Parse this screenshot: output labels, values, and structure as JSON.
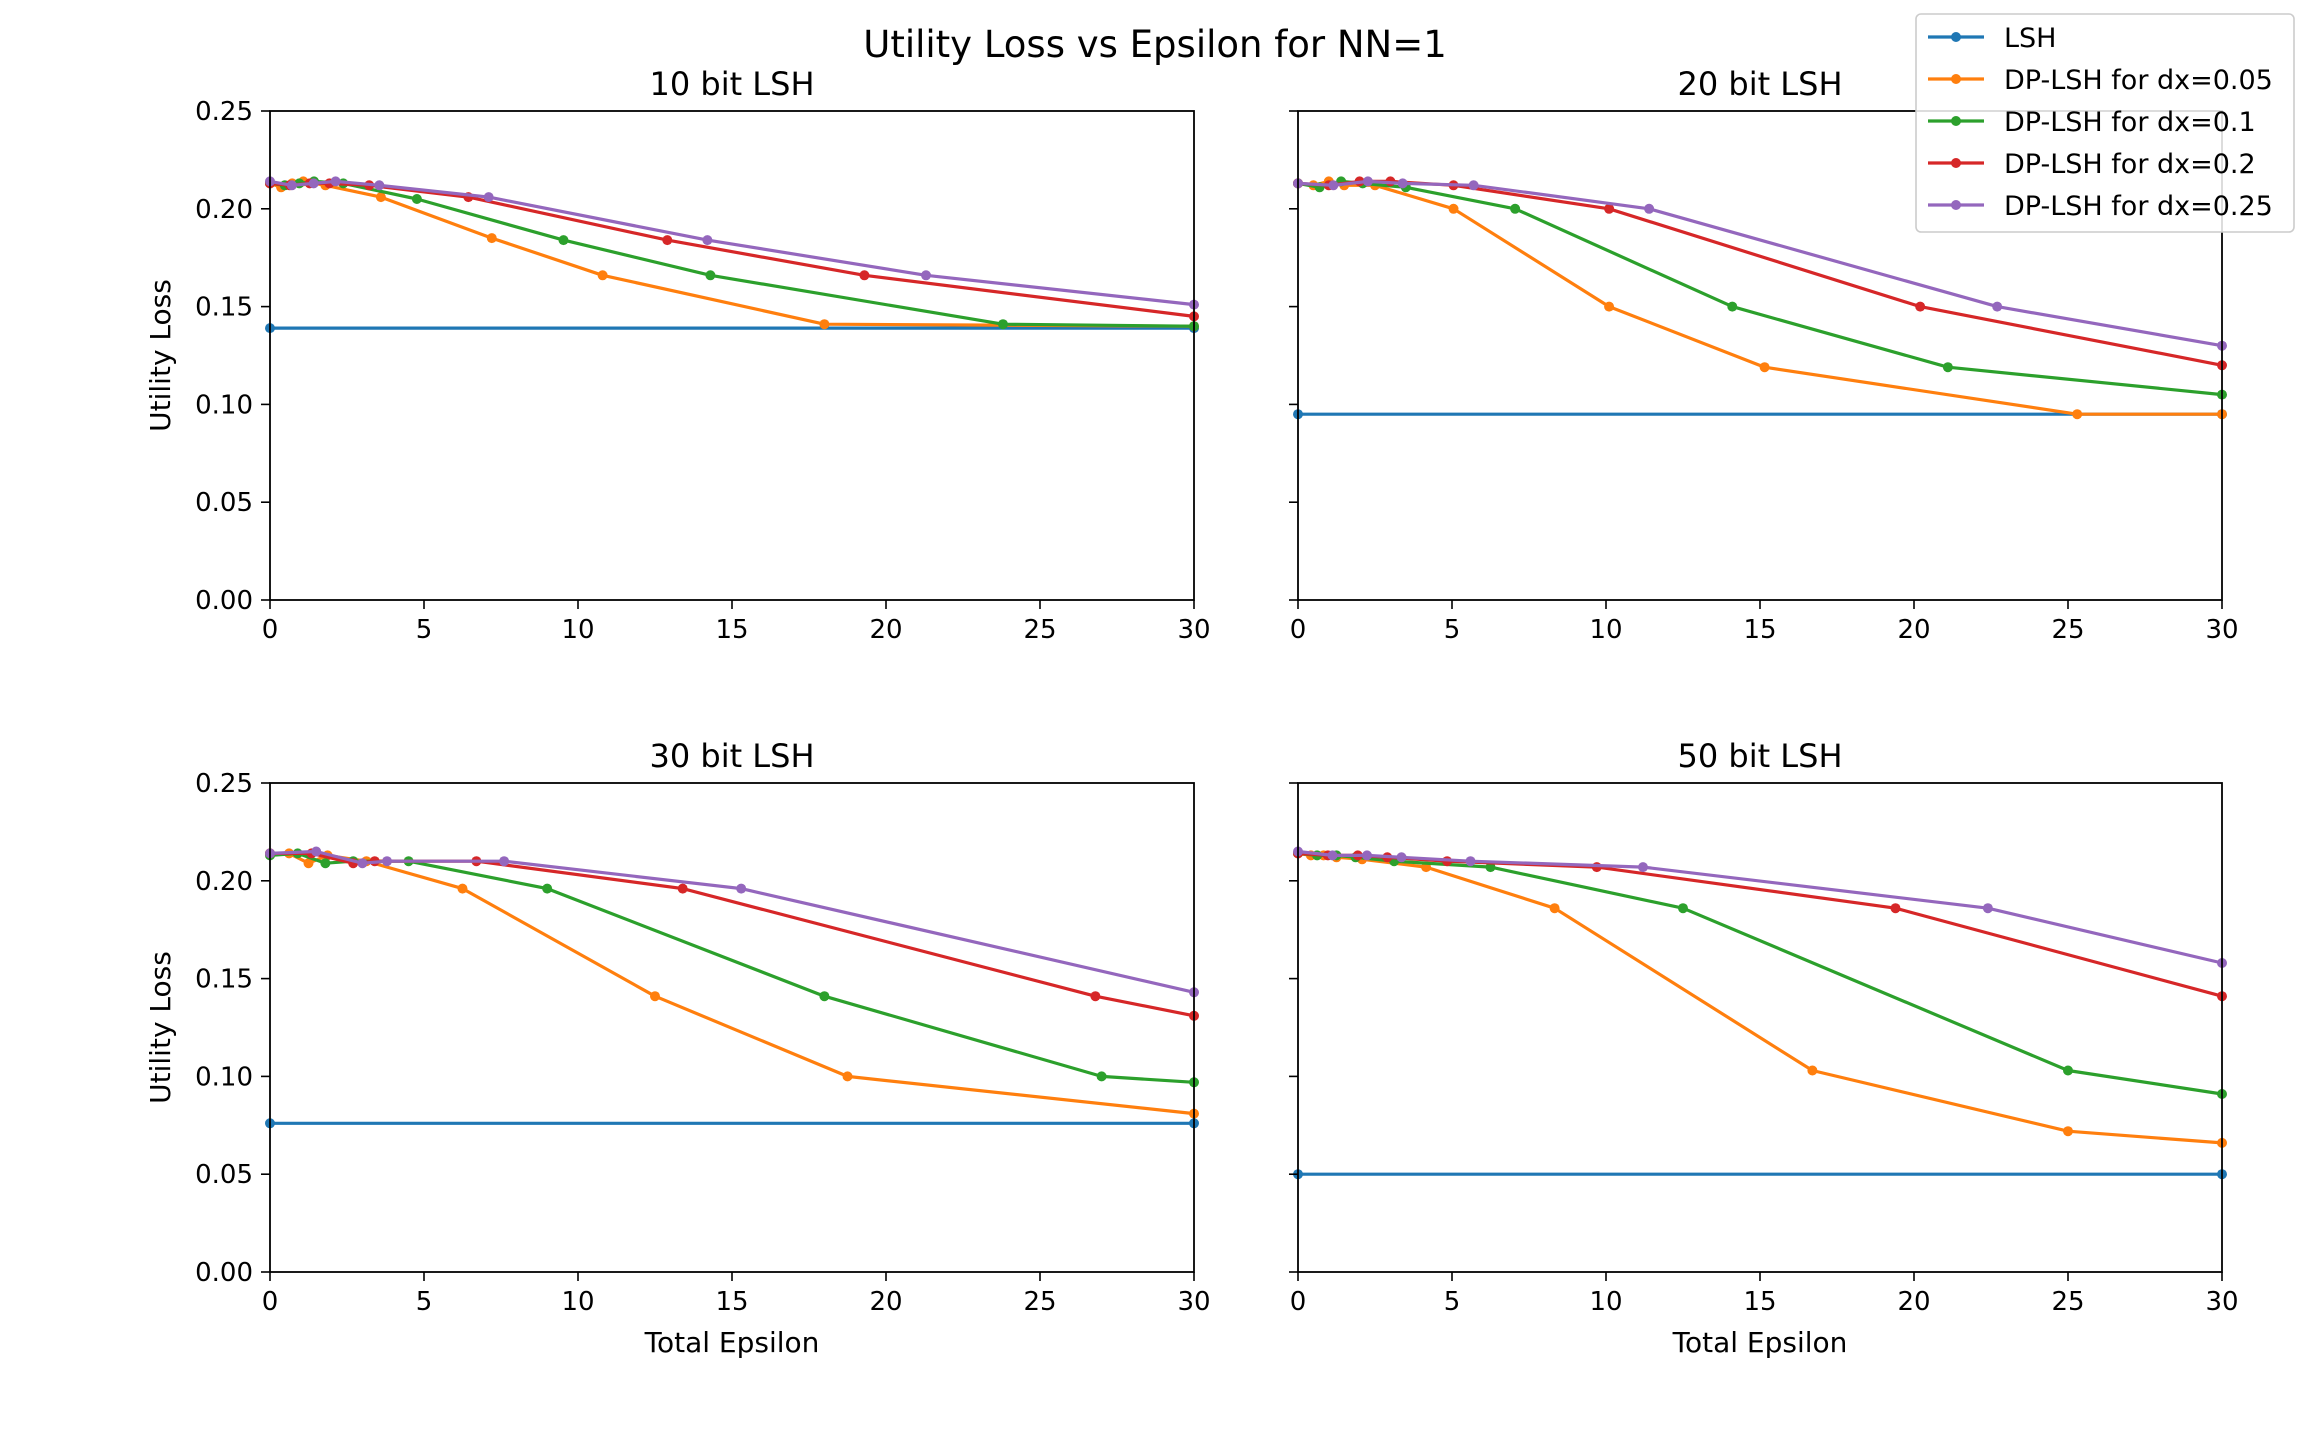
{
  "title": "Utility Loss vs Epsilon for NN=1",
  "legend": [
    {
      "label": "LSH",
      "color": "#1f77b4"
    },
    {
      "label": "DP-LSH for dx=0.05",
      "color": "#ff7f0e"
    },
    {
      "label": "DP-LSH for dx=0.1",
      "color": "#2ca02c"
    },
    {
      "label": "DP-LSH for dx=0.2",
      "color": "#d62728"
    },
    {
      "label": "DP-LSH for dx=0.25",
      "color": "#9467bd"
    }
  ],
  "chart_data": [
    {
      "type": "line",
      "title": "10 bit LSH",
      "xlabel": "",
      "ylabel": "Utility Loss",
      "xlim": [
        0,
        30
      ],
      "ylim": [
        0,
        0.25
      ],
      "xticks": [
        "0",
        "5",
        "10",
        "15",
        "20",
        "25",
        "30"
      ],
      "yticks": [
        "0.00",
        "0.05",
        "0.10",
        "0.15",
        "0.20",
        "0.25"
      ],
      "series": [
        {
          "name": "LSH",
          "color": "#1f77b4",
          "x": [
            0,
            30
          ],
          "y": [
            0.139,
            0.139
          ]
        },
        {
          "name": "DP-LSH for dx=0.05",
          "color": "#ff7f0e",
          "x": [
            0,
            0.36,
            0.72,
            1.08,
            1.8,
            3.6,
            7.2,
            10.8,
            18,
            30
          ],
          "y": [
            0.213,
            0.211,
            0.213,
            0.214,
            0.212,
            0.206,
            0.185,
            0.166,
            0.141,
            0.14
          ]
        },
        {
          "name": "DP-LSH for dx=0.1",
          "color": "#2ca02c",
          "x": [
            0,
            0.48,
            0.95,
            1.43,
            2.38,
            4.77,
            9.53,
            14.3,
            23.8,
            30
          ],
          "y": [
            0.213,
            0.212,
            0.213,
            0.214,
            0.213,
            0.205,
            0.184,
            0.166,
            0.141,
            0.14
          ]
        },
        {
          "name": "DP-LSH for dx=0.2",
          "color": "#d62728",
          "x": [
            0,
            0.64,
            1.29,
            1.93,
            3.22,
            6.44,
            12.9,
            19.3,
            30
          ],
          "y": [
            0.213,
            0.212,
            0.213,
            0.213,
            0.212,
            0.206,
            0.184,
            0.166,
            0.145
          ]
        },
        {
          "name": "DP-LSH for dx=0.25",
          "color": "#9467bd",
          "x": [
            0,
            0.71,
            1.42,
            2.13,
            3.55,
            7.1,
            14.2,
            21.3,
            30
          ],
          "y": [
            0.214,
            0.212,
            0.213,
            0.214,
            0.212,
            0.206,
            0.184,
            0.166,
            0.151
          ]
        }
      ]
    },
    {
      "type": "line",
      "title": "20 bit LSH",
      "xlabel": "",
      "ylabel": "",
      "xlim": [
        0,
        30
      ],
      "ylim": [
        0,
        0.25
      ],
      "xticks": [
        "0",
        "5",
        "10",
        "15",
        "20",
        "25",
        "30"
      ],
      "yticks": [],
      "series": [
        {
          "name": "LSH",
          "color": "#1f77b4",
          "x": [
            0,
            30
          ],
          "y": [
            0.095,
            0.095
          ]
        },
        {
          "name": "DP-LSH for dx=0.05",
          "color": "#ff7f0e",
          "x": [
            0,
            0.5,
            1.0,
            1.5,
            2.5,
            5.05,
            10.1,
            15.15,
            25.3,
            30
          ],
          "y": [
            0.213,
            0.212,
            0.214,
            0.212,
            0.212,
            0.2,
            0.15,
            0.119,
            0.095,
            0.095
          ]
        },
        {
          "name": "DP-LSH for dx=0.1",
          "color": "#2ca02c",
          "x": [
            0,
            0.7,
            1.4,
            2.1,
            3.5,
            7.05,
            14.1,
            21.1,
            30
          ],
          "y": [
            0.213,
            0.211,
            0.214,
            0.213,
            0.211,
            0.2,
            0.15,
            0.119,
            0.105
          ]
        },
        {
          "name": "DP-LSH for dx=0.2",
          "color": "#d62728",
          "x": [
            0,
            1.0,
            2.0,
            3.0,
            5.05,
            10.1,
            20.2,
            30
          ],
          "y": [
            0.213,
            0.212,
            0.214,
            0.214,
            0.212,
            0.2,
            0.15,
            0.12
          ]
        },
        {
          "name": "DP-LSH for dx=0.25",
          "color": "#9467bd",
          "x": [
            0,
            1.15,
            2.27,
            3.4,
            5.7,
            11.4,
            22.7,
            30
          ],
          "y": [
            0.213,
            0.212,
            0.214,
            0.213,
            0.212,
            0.2,
            0.15,
            0.13
          ]
        }
      ]
    },
    {
      "type": "line",
      "title": "30 bit LSH",
      "xlabel": "Total Epsilon",
      "ylabel": "Utility Loss",
      "xlim": [
        0,
        30
      ],
      "ylim": [
        0,
        0.25
      ],
      "xticks": [
        "0",
        "5",
        "10",
        "15",
        "20",
        "25",
        "30"
      ],
      "yticks": [
        "0.00",
        "0.05",
        "0.10",
        "0.15",
        "0.20",
        "0.25"
      ],
      "series": [
        {
          "name": "LSH",
          "color": "#1f77b4",
          "x": [
            0,
            30
          ],
          "y": [
            0.076,
            0.076
          ]
        },
        {
          "name": "DP-LSH for dx=0.05",
          "color": "#ff7f0e",
          "x": [
            0,
            0.62,
            1.25,
            1.87,
            3.13,
            6.25,
            12.5,
            18.75,
            30
          ],
          "y": [
            0.214,
            0.214,
            0.209,
            0.213,
            0.21,
            0.196,
            0.141,
            0.1,
            0.081
          ]
        },
        {
          "name": "DP-LSH for dx=0.1",
          "color": "#2ca02c",
          "x": [
            0,
            0.9,
            1.8,
            2.7,
            4.5,
            9.0,
            18.0,
            27.0,
            30
          ],
          "y": [
            0.213,
            0.214,
            0.209,
            0.21,
            0.21,
            0.196,
            0.141,
            0.1,
            0.097
          ]
        },
        {
          "name": "DP-LSH for dx=0.2",
          "color": "#d62728",
          "x": [
            0,
            1.35,
            2.7,
            3.4,
            6.7,
            13.4,
            26.8,
            30
          ],
          "y": [
            0.214,
            0.214,
            0.209,
            0.21,
            0.21,
            0.196,
            0.141,
            0.131
          ]
        },
        {
          "name": "DP-LSH for dx=0.25",
          "color": "#9467bd",
          "x": [
            0,
            1.5,
            3.0,
            3.8,
            7.6,
            15.3,
            30
          ],
          "y": [
            0.214,
            0.215,
            0.209,
            0.21,
            0.21,
            0.196,
            0.143
          ]
        }
      ]
    },
    {
      "type": "line",
      "title": "50 bit LSH",
      "xlabel": "Total Epsilon",
      "ylabel": "",
      "xlim": [
        0,
        30
      ],
      "ylim": [
        0,
        0.25
      ],
      "xticks": [
        "0",
        "5",
        "10",
        "15",
        "20",
        "25",
        "30"
      ],
      "yticks": [],
      "series": [
        {
          "name": "LSH",
          "color": "#1f77b4",
          "x": [
            0,
            30
          ],
          "y": [
            0.05,
            0.05
          ]
        },
        {
          "name": "DP-LSH for dx=0.05",
          "color": "#ff7f0e",
          "x": [
            0,
            0.42,
            0.83,
            1.25,
            2.08,
            4.16,
            8.33,
            16.7,
            25.0,
            30
          ],
          "y": [
            0.214,
            0.213,
            0.213,
            0.212,
            0.211,
            0.207,
            0.186,
            0.103,
            0.072,
            0.066
          ]
        },
        {
          "name": "DP-LSH for dx=0.1",
          "color": "#2ca02c",
          "x": [
            0,
            0.62,
            1.25,
            1.87,
            3.12,
            6.25,
            12.5,
            25.0,
            30
          ],
          "y": [
            0.214,
            0.213,
            0.213,
            0.212,
            0.21,
            0.207,
            0.186,
            0.103,
            0.091
          ]
        },
        {
          "name": "DP-LSH for dx=0.2",
          "color": "#d62728",
          "x": [
            0,
            0.97,
            1.94,
            2.9,
            4.84,
            9.7,
            19.4,
            30
          ],
          "y": [
            0.214,
            0.213,
            0.213,
            0.212,
            0.21,
            0.207,
            0.186,
            0.141
          ]
        },
        {
          "name": "DP-LSH for dx=0.25",
          "color": "#9467bd",
          "x": [
            0,
            1.12,
            2.24,
            3.36,
            5.6,
            11.2,
            22.4,
            30
          ],
          "y": [
            0.215,
            0.213,
            0.213,
            0.212,
            0.21,
            0.207,
            0.186,
            0.158
          ]
        }
      ]
    }
  ]
}
